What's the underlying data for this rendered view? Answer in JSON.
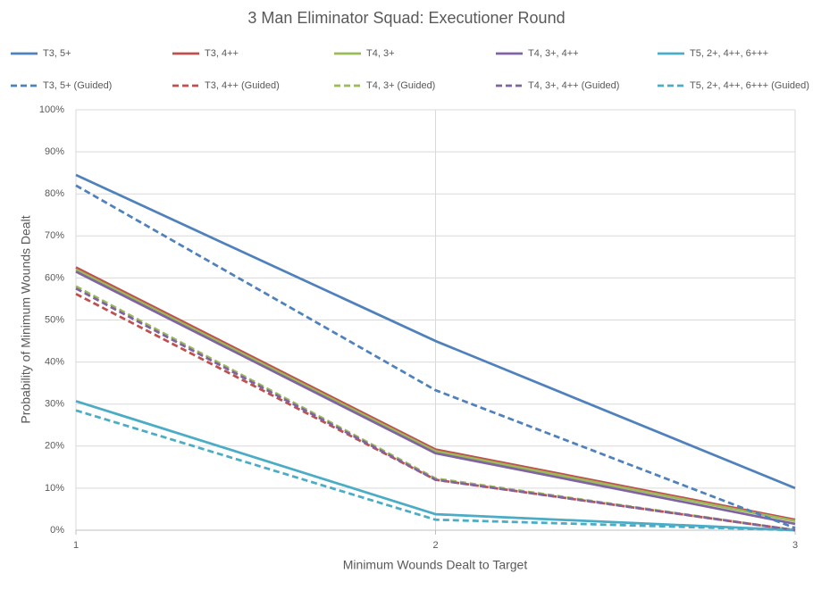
{
  "chart_data": {
    "type": "line",
    "title": "3 Man Eliminator Squad: Executioner Round",
    "xlabel": "Minimum Wounds Dealt to Target",
    "ylabel": "Probability of Minimum Wounds Dealt",
    "x": [
      1,
      2,
      3
    ],
    "xlim": [
      1,
      3
    ],
    "xticks": [
      1,
      2,
      3
    ],
    "ylim": [
      0,
      100
    ],
    "yticks": [
      {
        "value": 0,
        "label": "0%"
      },
      {
        "value": 10,
        "label": "10%"
      },
      {
        "value": 20,
        "label": "20%"
      },
      {
        "value": 30,
        "label": "30%"
      },
      {
        "value": 40,
        "label": "40%"
      },
      {
        "value": 50,
        "label": "50%"
      },
      {
        "value": 60,
        "label": "60%"
      },
      {
        "value": 70,
        "label": "70%"
      },
      {
        "value": 80,
        "label": "80%"
      },
      {
        "value": 90,
        "label": "90%"
      },
      {
        "value": 100,
        "label": "100%"
      }
    ],
    "grid": true,
    "legend": "top",
    "series": [
      {
        "name": "T3, 5+",
        "color": "#4f81bd",
        "dashed": false,
        "values": [
          84.5,
          45,
          10
        ]
      },
      {
        "name": "T3, 4++",
        "color": "#c0504d",
        "dashed": false,
        "values": [
          62.5,
          19.2,
          2.5
        ]
      },
      {
        "name": "T4, 3+",
        "color": "#9bbb59",
        "dashed": false,
        "values": [
          62,
          18.8,
          2.2
        ]
      },
      {
        "name": "T4, 3+, 4++",
        "color": "#8064a2",
        "dashed": false,
        "values": [
          61.5,
          18.3,
          1.5
        ]
      },
      {
        "name": "T5, 2+, 4++, 6+++",
        "color": "#4bacc6",
        "dashed": false,
        "values": [
          30.7,
          3.8,
          0
        ]
      },
      {
        "name": "T3, 5+ (Guided)",
        "color": "#4f81bd",
        "dashed": true,
        "values": [
          82,
          33.3,
          0.5
        ]
      },
      {
        "name": "T3, 4++ (Guided)",
        "color": "#c0504d",
        "dashed": true,
        "values": [
          56.2,
          12,
          0
        ]
      },
      {
        "name": "T4, 3+ (Guided)",
        "color": "#9bbb59",
        "dashed": true,
        "values": [
          58,
          12.3,
          0
        ]
      },
      {
        "name": "T4, 3+, 4++ (Guided)",
        "color": "#8064a2",
        "dashed": true,
        "values": [
          57.5,
          12,
          0
        ]
      },
      {
        "name": "T5, 2+, 4++, 6+++ (Guided)",
        "color": "#4bacc6",
        "dashed": true,
        "values": [
          28.5,
          2.5,
          0
        ]
      }
    ]
  }
}
